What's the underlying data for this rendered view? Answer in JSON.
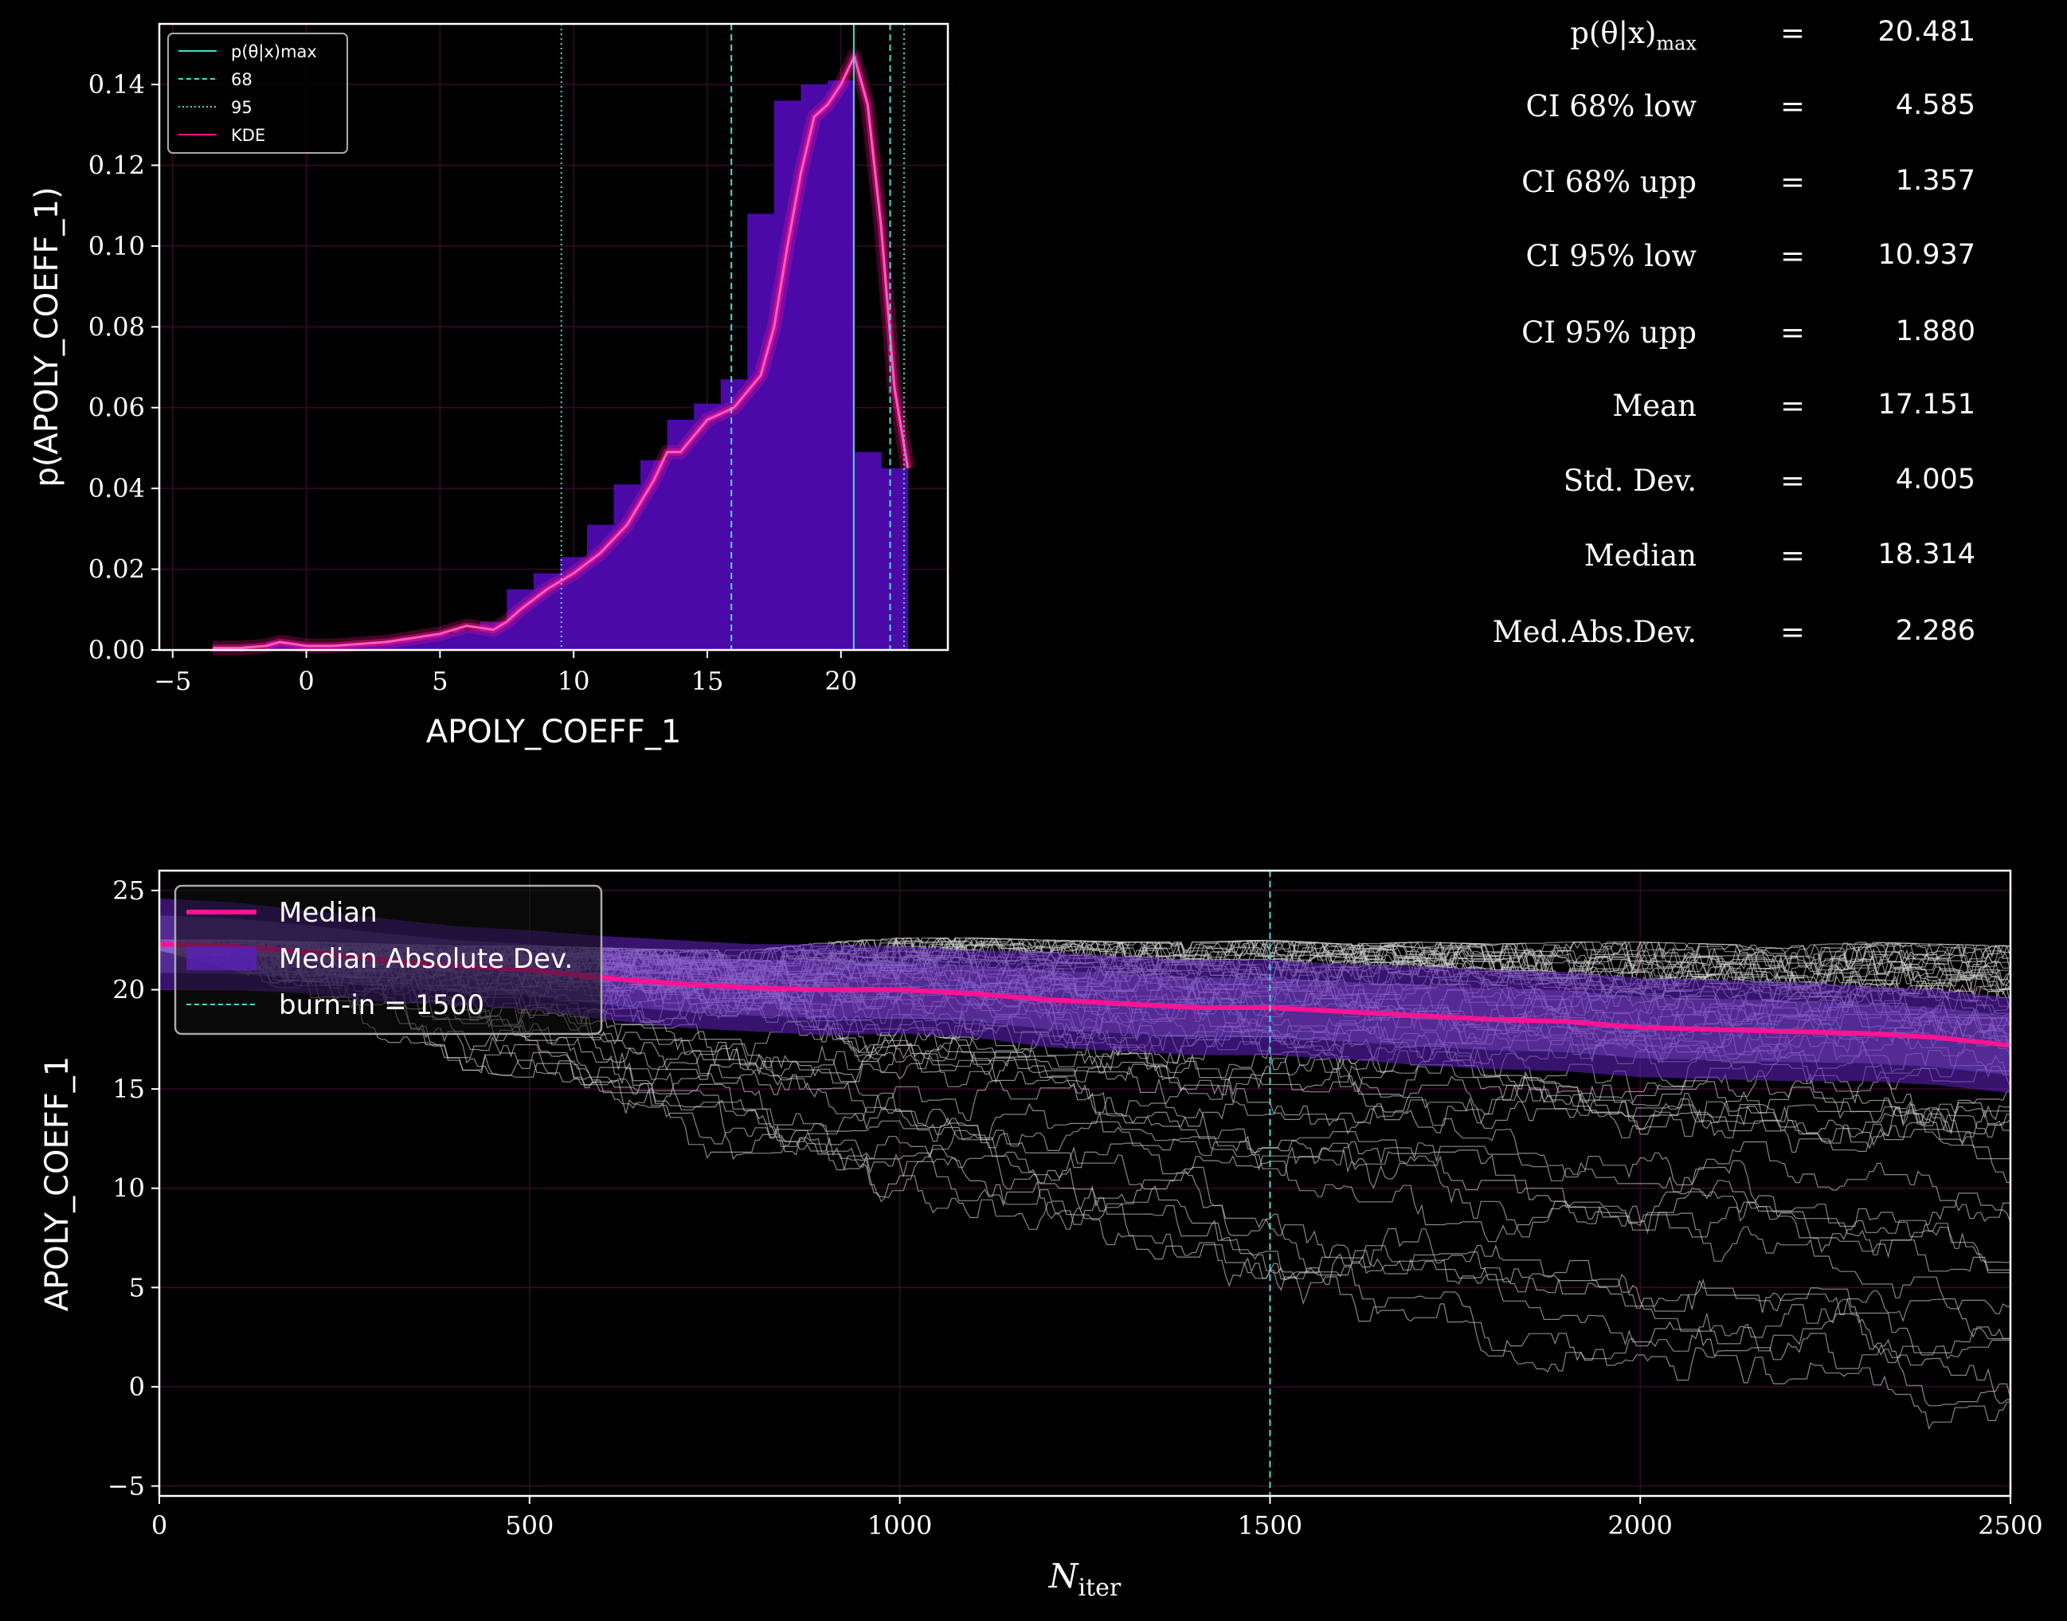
{
  "chart_data": [
    {
      "type": "bar",
      "xlabel": "APOLY_COEFF_1",
      "ylabel": "p(APOLY_COEFF_1)",
      "xlim": [
        -5.5,
        24
      ],
      "ylim": [
        0,
        0.155
      ],
      "xticks": [
        -5,
        0,
        5,
        10,
        15,
        20
      ],
      "yticks": [
        0.0,
        0.02,
        0.04,
        0.06,
        0.08,
        0.1,
        0.12,
        0.14
      ],
      "xtick_labels": [
        "−5",
        "0",
        "5",
        "10",
        "15",
        "20"
      ],
      "ytick_labels": [
        "0.00",
        "0.02",
        "0.04",
        "0.06",
        "0.08",
        "0.10",
        "0.12",
        "0.14"
      ],
      "grid": true,
      "legend_position": "top-left",
      "legend": [
        {
          "label": "p(θ|x)max",
          "style": "solid",
          "color": "#40e0d0"
        },
        {
          "label": "68",
          "style": "dashed",
          "color": "#40e0d0"
        },
        {
          "label": "95",
          "style": "dotted",
          "color": "#40e0d0"
        },
        {
          "label": "KDE",
          "style": "solid",
          "color": "#ff1493"
        }
      ],
      "histogram": {
        "bin_start": -3.5,
        "bin_width": 1.0,
        "values": [
          0.0,
          0.0,
          0.002,
          0.001,
          0.001,
          0.0015,
          0.002,
          0.003,
          0.004,
          0.005,
          0.007,
          0.015,
          0.019,
          0.023,
          0.031,
          0.041,
          0.047,
          0.057,
          0.061,
          0.067,
          0.108,
          0.136,
          0.14,
          0.141,
          0.049,
          0.045
        ],
        "color": "#4b0aa8"
      },
      "kde": {
        "x": [
          -3.5,
          -2.5,
          -1.5,
          -1,
          -0.5,
          0,
          1,
          2,
          3,
          4,
          5,
          6,
          6.5,
          7,
          7.5,
          8,
          9,
          10,
          11,
          12,
          13,
          13.5,
          14,
          14.5,
          15,
          16,
          17,
          17.5,
          18,
          18.5,
          19,
          19.5,
          20,
          20.5,
          21,
          21.5,
          22,
          22.5
        ],
        "y": [
          0.0005,
          0.0005,
          0.001,
          0.002,
          0.0015,
          0.001,
          0.001,
          0.0015,
          0.002,
          0.003,
          0.004,
          0.006,
          0.0055,
          0.005,
          0.007,
          0.01,
          0.015,
          0.019,
          0.024,
          0.031,
          0.042,
          0.049,
          0.049,
          0.053,
          0.057,
          0.06,
          0.068,
          0.08,
          0.1,
          0.118,
          0.132,
          0.135,
          0.14,
          0.147,
          0.135,
          0.105,
          0.065,
          0.045
        ],
        "color": "#ff1493"
      },
      "vlines": [
        {
          "label": "p(θ|x)max",
          "x": 20.48,
          "style": "solid"
        },
        {
          "label": "68",
          "x": 15.9,
          "style": "dashed"
        },
        {
          "label": "68",
          "x": 21.84,
          "style": "dashed"
        },
        {
          "label": "95",
          "x": 9.54,
          "style": "dotted"
        },
        {
          "label": "95",
          "x": 22.36,
          "style": "dotted"
        }
      ]
    },
    {
      "type": "line",
      "xlabel": "N_iter",
      "ylabel": "APOLY_COEFF_1",
      "xlim": [
        0,
        2500
      ],
      "ylim": [
        -5.5,
        26
      ],
      "xticks": [
        0,
        500,
        1000,
        1500,
        2000,
        2500
      ],
      "yticks": [
        -5,
        0,
        5,
        10,
        15,
        20,
        25
      ],
      "xtick_labels": [
        "0",
        "500",
        "1000",
        "1500",
        "2000",
        "2500"
      ],
      "ytick_labels": [
        "−5",
        "0",
        "5",
        "10",
        "15",
        "20",
        "25"
      ],
      "grid": true,
      "legend_position": "top-left",
      "legend": [
        {
          "label": "Median",
          "color": "#ff1493"
        },
        {
          "label": "Median Absolute Dev.",
          "color": "#5b1fb8"
        },
        {
          "label": "burn-in = 1500",
          "color": "#40e0d0"
        }
      ],
      "burn_in": 1500,
      "median": {
        "x": [
          0,
          100,
          200,
          300,
          400,
          500,
          600,
          700,
          800,
          900,
          1000,
          1100,
          1200,
          1300,
          1400,
          1500,
          1600,
          1700,
          1800,
          1900,
          2000,
          2100,
          2200,
          2300,
          2400,
          2500
        ],
        "y": [
          22.3,
          22.2,
          21.9,
          21.5,
          21.2,
          21.0,
          20.6,
          20.3,
          20.1,
          20.0,
          20.0,
          19.8,
          19.5,
          19.3,
          19.1,
          19.1,
          18.9,
          18.7,
          18.5,
          18.4,
          18.1,
          18.0,
          17.9,
          17.8,
          17.6,
          17.2
        ]
      },
      "mad_band": {
        "upper": [
          24.6,
          24.4,
          24.0,
          23.6,
          23.2,
          23.0,
          22.7,
          22.5,
          22.3,
          22.3,
          22.2,
          22.0,
          21.9,
          21.7,
          21.5,
          21.5,
          21.3,
          21.2,
          21.0,
          20.9,
          20.6,
          20.5,
          20.4,
          20.2,
          20.0,
          19.6
        ],
        "lower": [
          20.0,
          20.0,
          19.8,
          19.4,
          19.2,
          19.0,
          18.5,
          18.1,
          17.9,
          17.7,
          17.8,
          17.6,
          17.1,
          16.9,
          16.7,
          16.7,
          16.5,
          16.2,
          16.0,
          15.9,
          15.6,
          15.5,
          15.4,
          15.4,
          15.2,
          14.8
        ]
      },
      "walker_envelope": {
        "upper": [
          22.5,
          22.5,
          22.4,
          22.3,
          22.2,
          22.2,
          22.1,
          22.0,
          22.0,
          22.4,
          22.6,
          22.6,
          22.5,
          22.4,
          22.4,
          22.5,
          22.3,
          22.4,
          22.3,
          22.4,
          22.4,
          22.3,
          22.2,
          22.4,
          22.3,
          22.2
        ],
        "lower": [
          22.0,
          21.0,
          19.5,
          17.5,
          16.0,
          15.5,
          13.5,
          11.5,
          10.5,
          9.5,
          9.0,
          8.5,
          7.5,
          6.5,
          5.0,
          3.5,
          3.0,
          2.5,
          1.5,
          0.5,
          0.5,
          0.0,
          0.0,
          -1.0,
          -3.0,
          -1.5
        ]
      }
    }
  ],
  "stats": [
    {
      "label": "p(θ|x)",
      "sub": "max",
      "value": "20.481"
    },
    {
      "label": "CI 68% low",
      "sub": "",
      "value": "4.585"
    },
    {
      "label": "CI 68% upp",
      "sub": "",
      "value": "1.357"
    },
    {
      "label": "CI 95% low",
      "sub": "",
      "value": "10.937"
    },
    {
      "label": "CI 95% upp",
      "sub": "",
      "value": "1.880"
    },
    {
      "label": "Mean",
      "sub": "",
      "value": "17.151"
    },
    {
      "label": "Std. Dev.",
      "sub": "",
      "value": "4.005"
    },
    {
      "label": "Median",
      "sub": "",
      "value": "18.314"
    },
    {
      "label": "Med.Abs.Dev.",
      "sub": "",
      "value": "2.286"
    }
  ],
  "stat_eq": "=",
  "colors": {
    "background": "#000000",
    "axes": "#ffffff",
    "grid": "#3a0a2a",
    "hist": "#4b0aa8",
    "kde": "#ff1493",
    "ci_lines": "#40e0d0",
    "mad_band": "#5b1fb8",
    "walkers": "#cfcfcf"
  }
}
